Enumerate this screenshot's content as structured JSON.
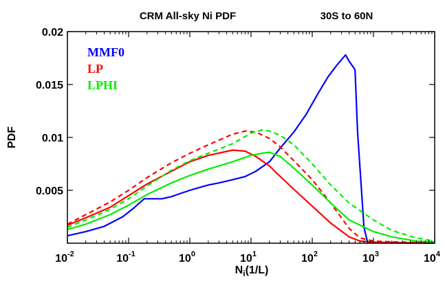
{
  "chart_data": {
    "type": "line",
    "title_left": "CRM All-sky Ni PDF",
    "title_right": "30S to 60N",
    "xlabel_main": "N",
    "xlabel_sub": "i",
    "xlabel_unit": "(1/L)",
    "ylabel": "PDF",
    "xscale": "log",
    "xlim": [
      0.01,
      10000
    ],
    "ylim": [
      0,
      0.02
    ],
    "x_ticks": [
      {
        "value": 0.01,
        "base": "10",
        "exp": "-2"
      },
      {
        "value": 0.1,
        "base": "10",
        "exp": "-1"
      },
      {
        "value": 1,
        "base": "10",
        "exp": "0"
      },
      {
        "value": 10,
        "base": "10",
        "exp": "1"
      },
      {
        "value": 100,
        "base": "10",
        "exp": "2"
      },
      {
        "value": 1000,
        "base": "10",
        "exp": "3"
      },
      {
        "value": 10000,
        "base": "10",
        "exp": "4"
      }
    ],
    "y_ticks": [
      {
        "value": 0.005,
        "label": "0.005"
      },
      {
        "value": 0.01,
        "label": "0.01"
      },
      {
        "value": 0.015,
        "label": "0.015"
      },
      {
        "value": 0.02,
        "label": "0.02"
      }
    ],
    "grid": false,
    "legend_position": "top-left",
    "series": [
      {
        "name": "MMF0",
        "color": "#0000ff",
        "dash": false,
        "x": [
          0.01,
          0.02,
          0.04,
          0.08,
          0.12,
          0.18,
          0.25,
          0.35,
          0.5,
          0.7,
          1,
          1.5,
          2,
          3,
          5,
          8,
          12,
          20,
          30,
          50,
          80,
          120,
          180,
          250,
          350,
          400,
          500,
          550,
          700,
          800,
          1000,
          3000,
          10000
        ],
        "y": [
          0.0007,
          0.0011,
          0.0016,
          0.0025,
          0.0033,
          0.0042,
          0.0042,
          0.0042,
          0.0044,
          0.0047,
          0.005,
          0.0053,
          0.0055,
          0.0057,
          0.006,
          0.0063,
          0.0068,
          0.0077,
          0.009,
          0.0105,
          0.0122,
          0.014,
          0.0157,
          0.0168,
          0.0178,
          0.0172,
          0.0164,
          0.0105,
          0.0015,
          0.0001,
          5e-05,
          2e-05,
          1e-05
        ]
      },
      {
        "name": "LP",
        "color": "#ff0000",
        "dash": false,
        "x": [
          0.01,
          0.02,
          0.05,
          0.1,
          0.2,
          0.5,
          1,
          2,
          5,
          8,
          12,
          20,
          30,
          50,
          100,
          200,
          400,
          600,
          1000,
          3000,
          10000
        ],
        "y": [
          0.0017,
          0.0024,
          0.0034,
          0.0045,
          0.0056,
          0.0068,
          0.0077,
          0.0083,
          0.0088,
          0.0087,
          0.0082,
          0.0073,
          0.0063,
          0.0051,
          0.0035,
          0.0019,
          0.0006,
          0.0002,
          0.0001,
          5e-05,
          2e-05
        ]
      },
      {
        "name": "LP",
        "color": "#ff0000",
        "dash": true,
        "x": [
          0.01,
          0.02,
          0.05,
          0.1,
          0.2,
          0.5,
          1,
          2,
          5,
          8,
          12,
          20,
          30,
          50,
          100,
          200,
          400,
          600,
          1000,
          3000,
          10000
        ],
        "y": [
          0.0018,
          0.0027,
          0.0039,
          0.005,
          0.0062,
          0.0076,
          0.0085,
          0.0093,
          0.0103,
          0.0106,
          0.0105,
          0.0099,
          0.0091,
          0.0078,
          0.006,
          0.0038,
          0.0014,
          0.0005,
          0.0002,
          0.0001,
          3e-05
        ]
      },
      {
        "name": "LPHI",
        "color": "#00ee00",
        "dash": false,
        "x": [
          0.01,
          0.02,
          0.05,
          0.1,
          0.2,
          0.5,
          1,
          2,
          5,
          10,
          15,
          20,
          30,
          50,
          100,
          200,
          400,
          1000,
          2000,
          5000,
          10000
        ],
        "y": [
          0.0013,
          0.0018,
          0.0027,
          0.0036,
          0.0046,
          0.0057,
          0.0064,
          0.007,
          0.0077,
          0.0083,
          0.0085,
          0.0086,
          0.0082,
          0.0071,
          0.0055,
          0.0038,
          0.0022,
          0.0011,
          0.0006,
          0.0002,
          0.0001
        ]
      },
      {
        "name": "LPHI",
        "color": "#00ee00",
        "dash": true,
        "x": [
          0.01,
          0.02,
          0.05,
          0.1,
          0.2,
          0.5,
          1,
          2,
          5,
          10,
          15,
          20,
          30,
          50,
          100,
          200,
          400,
          1000,
          2000,
          5000,
          10000
        ],
        "y": [
          0.0015,
          0.0022,
          0.0032,
          0.0042,
          0.0054,
          0.0069,
          0.0078,
          0.0085,
          0.0094,
          0.0104,
          0.0107,
          0.0106,
          0.0102,
          0.0093,
          0.0075,
          0.0055,
          0.0038,
          0.0022,
          0.0012,
          0.0005,
          0.0002
        ]
      }
    ]
  }
}
